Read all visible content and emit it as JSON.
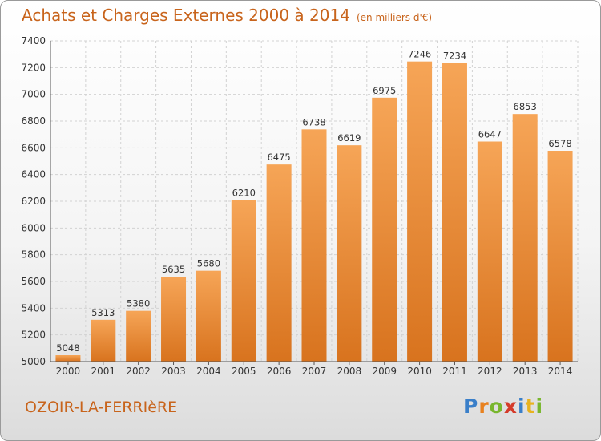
{
  "header": {
    "title": "Achats et Charges Externes 2000 à 2014",
    "unit": "(en milliers d'€)"
  },
  "footer": {
    "city": "OZOIR-LA-FERRIèRE",
    "logo": {
      "letters": [
        "P",
        "r",
        "o",
        "x",
        "i",
        "t",
        "i"
      ],
      "colors": [
        "#3a7fc9",
        "#e8811f",
        "#79b62e",
        "#d43b2a",
        "#3a7fc9",
        "#e8b21f",
        "#79b62e"
      ]
    }
  },
  "colors": {
    "bar_top": "#f6a557",
    "bar_bottom": "#d8731e",
    "title": "#c8641c",
    "grid": "#d2d2d2"
  },
  "chart_data": {
    "type": "bar",
    "title": "Achats et Charges Externes 2000 à 2014",
    "subtitle": "(en milliers d'€)",
    "categories": [
      "2000",
      "2001",
      "2002",
      "2003",
      "2004",
      "2005",
      "2006",
      "2007",
      "2008",
      "2009",
      "2010",
      "2011",
      "2012",
      "2013",
      "2014"
    ],
    "values": [
      5048,
      5313,
      5380,
      5635,
      5680,
      6210,
      6475,
      6738,
      6619,
      6975,
      7246,
      7234,
      6647,
      6853,
      6578
    ],
    "ylim": [
      5000,
      7400
    ],
    "yticks": [
      5000,
      5200,
      5400,
      5600,
      5800,
      6000,
      6200,
      6400,
      6600,
      6800,
      7000,
      7200,
      7400
    ],
    "grid": true,
    "data_labels": true
  }
}
